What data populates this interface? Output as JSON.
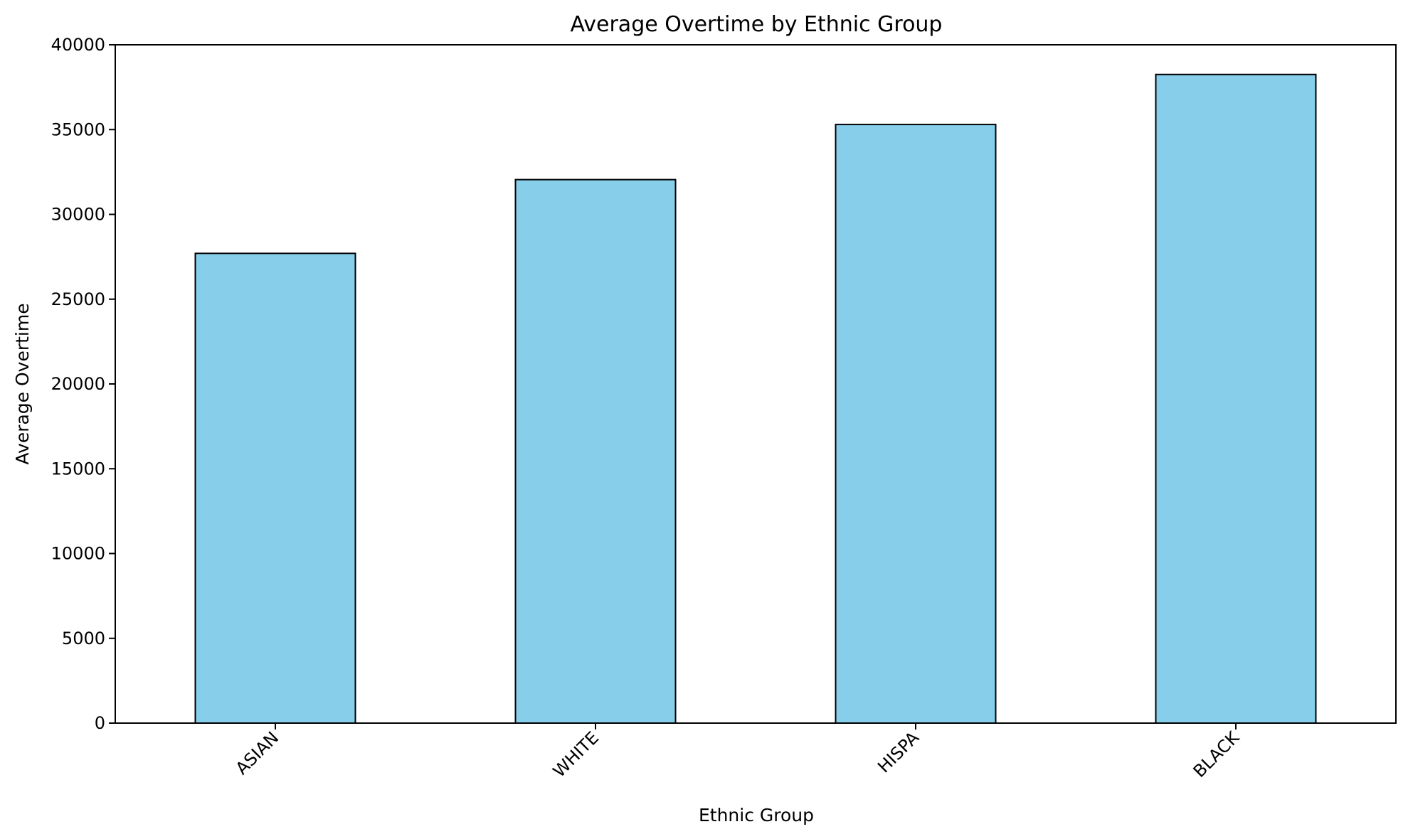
{
  "chart_data": {
    "type": "bar",
    "title": "Average Overtime by Ethnic Group",
    "xlabel": "Ethnic Group",
    "ylabel": "Average Overtime",
    "categories": [
      "ASIAN",
      "WHITE",
      "HISPA",
      "BLACK"
    ],
    "values": [
      27700,
      32050,
      35300,
      38250
    ],
    "ylim": [
      0,
      40000
    ],
    "yticks": [
      0,
      5000,
      10000,
      15000,
      20000,
      25000,
      30000,
      35000,
      40000
    ],
    "bar_color": "#87CEEB",
    "edge_color": "#000000",
    "grid": false,
    "legend": false
  }
}
